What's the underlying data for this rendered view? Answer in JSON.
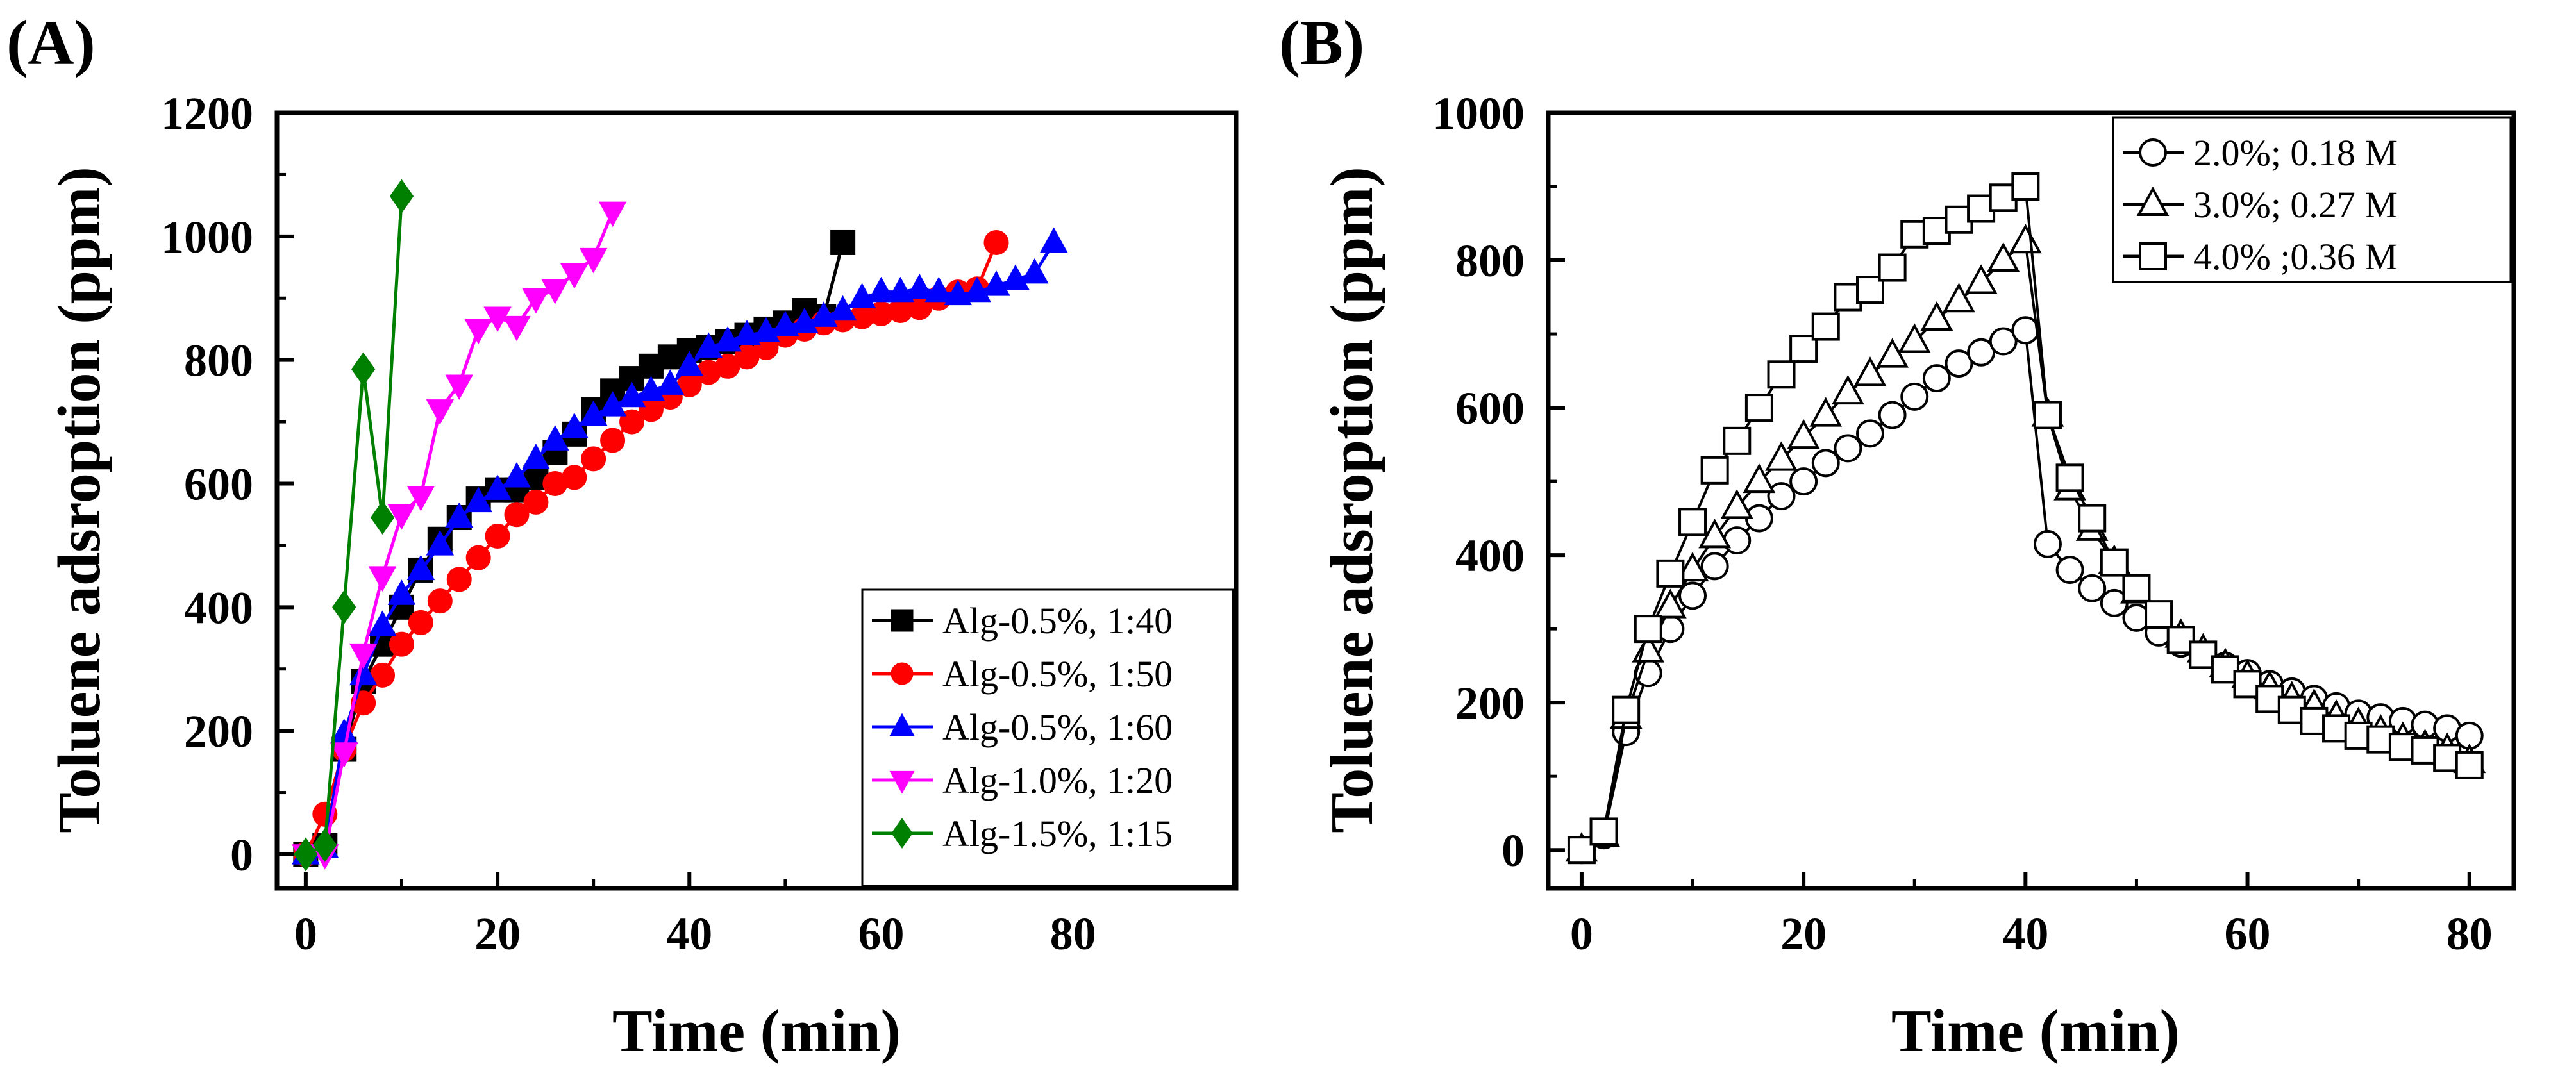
{
  "chart_data": [
    {
      "panel_label": "(A)",
      "type": "line",
      "xlabel": "Time (min)",
      "ylabel": "Toluene adsroption (ppm)",
      "xlim": [
        -3,
        97
      ],
      "ylim": [
        -55,
        1200
      ],
      "xticks": [
        "0",
        "20",
        "40",
        "60",
        "80"
      ],
      "yticks": [
        "0",
        "200",
        "400",
        "600",
        "800",
        "1000",
        "1200"
      ],
      "grid": false,
      "legend": "bottom-right",
      "series": [
        {
          "name": "Alg-0.5%, 1:40",
          "color": "#000000",
          "marker": "square",
          "filled": true,
          "x": [
            0,
            2,
            4,
            6,
            8,
            10,
            12,
            14,
            16,
            18,
            20,
            22,
            24,
            26,
            28,
            30,
            32,
            34,
            36,
            38,
            40,
            42,
            44,
            46,
            48,
            50,
            52,
            54,
            56
          ],
          "y": [
            0,
            15,
            170,
            280,
            340,
            400,
            460,
            510,
            545,
            575,
            590,
            590,
            610,
            650,
            680,
            720,
            750,
            770,
            790,
            805,
            815,
            820,
            830,
            840,
            850,
            860,
            880,
            870,
            990
          ]
        },
        {
          "name": "Alg-0.5%, 1:50",
          "color": "#ff0000",
          "marker": "circle",
          "filled": true,
          "x": [
            0,
            2,
            4,
            6,
            8,
            10,
            12,
            14,
            16,
            18,
            20,
            22,
            24,
            26,
            28,
            30,
            32,
            34,
            36,
            38,
            40,
            42,
            44,
            46,
            48,
            50,
            52,
            54,
            56,
            58,
            60,
            62,
            64,
            66,
            68,
            70,
            72
          ],
          "y": [
            0,
            65,
            170,
            245,
            290,
            340,
            375,
            410,
            445,
            480,
            515,
            550,
            570,
            600,
            610,
            640,
            670,
            700,
            720,
            740,
            760,
            780,
            790,
            805,
            820,
            840,
            850,
            860,
            865,
            870,
            875,
            880,
            885,
            900,
            910,
            915,
            990
          ]
        },
        {
          "name": "Alg-0.5%, 1:60",
          "color": "#0000ff",
          "marker": "triangle-up",
          "filled": true,
          "x": [
            0,
            2,
            4,
            6,
            8,
            10,
            12,
            14,
            16,
            18,
            20,
            22,
            24,
            26,
            28,
            30,
            32,
            34,
            36,
            38,
            40,
            42,
            44,
            46,
            48,
            50,
            52,
            54,
            56,
            58,
            60,
            62,
            64,
            66,
            68,
            70,
            72,
            74,
            76,
            78
          ],
          "y": [
            0,
            10,
            195,
            290,
            370,
            420,
            460,
            500,
            545,
            570,
            590,
            610,
            640,
            670,
            690,
            710,
            725,
            740,
            750,
            760,
            790,
            820,
            830,
            840,
            845,
            855,
            860,
            870,
            880,
            900,
            910,
            910,
            915,
            910,
            905,
            910,
            920,
            930,
            940,
            990
          ]
        },
        {
          "name": "Alg-1.0%, 1:20",
          "color": "#ff00ff",
          "marker": "triangle-down",
          "filled": true,
          "x": [
            0,
            2,
            4,
            6,
            8,
            10,
            12,
            14,
            16,
            18,
            20,
            22,
            24,
            26,
            28,
            30,
            32
          ],
          "y": [
            0,
            0,
            165,
            325,
            450,
            550,
            580,
            720,
            760,
            850,
            870,
            855,
            900,
            915,
            940,
            965,
            1040
          ]
        },
        {
          "name": "Alg-1.5%, 1:15",
          "color": "#008000",
          "marker": "diamond",
          "filled": true,
          "x": [
            0,
            2,
            4,
            6,
            8,
            10
          ],
          "y": [
            0,
            15,
            400,
            785,
            545,
            1065
          ]
        }
      ]
    },
    {
      "panel_label": "(B)",
      "type": "line",
      "xlabel": "Time (min)",
      "ylabel": "Toluene adsroption (ppm)",
      "xlim": [
        -3,
        84
      ],
      "ylim": [
        -52,
        1000
      ],
      "xticks": [
        "0",
        "20",
        "40",
        "60",
        "80"
      ],
      "yticks": [
        "0",
        "200",
        "400",
        "600",
        "800",
        "1000"
      ],
      "grid": false,
      "legend": "top-right",
      "series": [
        {
          "name": "2.0%; 0.18 M",
          "color": "#000000",
          "marker": "circle",
          "filled": false,
          "x": [
            0,
            2,
            4,
            6,
            8,
            10,
            12,
            14,
            16,
            18,
            20,
            22,
            24,
            26,
            28,
            30,
            32,
            34,
            36,
            38,
            40,
            42,
            44,
            46,
            48,
            50,
            52,
            54,
            56,
            58,
            60,
            62,
            64,
            66,
            68,
            70,
            72,
            74,
            76,
            78,
            80
          ],
          "y": [
            0,
            20,
            160,
            240,
            300,
            345,
            385,
            420,
            450,
            480,
            500,
            525,
            545,
            565,
            590,
            615,
            640,
            660,
            675,
            690,
            705,
            415,
            380,
            355,
            335,
            315,
            295,
            280,
            265,
            250,
            240,
            225,
            215,
            205,
            195,
            185,
            180,
            175,
            170,
            165,
            155
          ]
        },
        {
          "name": "3.0%; 0.27 M",
          "color": "#000000",
          "marker": "triangle-up",
          "filled": false,
          "x": [
            0,
            2,
            4,
            6,
            8,
            10,
            12,
            14,
            16,
            18,
            20,
            22,
            24,
            26,
            28,
            30,
            32,
            34,
            36,
            38,
            40,
            42,
            44,
            46,
            48,
            50,
            52,
            54,
            56,
            58,
            60,
            62,
            64,
            66,
            68,
            70,
            72,
            74,
            76,
            78,
            80
          ],
          "y": [
            0,
            20,
            180,
            270,
            330,
            380,
            425,
            465,
            500,
            530,
            560,
            590,
            620,
            645,
            670,
            690,
            720,
            745,
            770,
            800,
            825,
            590,
            490,
            435,
            390,
            350,
            315,
            290,
            270,
            250,
            235,
            220,
            205,
            195,
            180,
            170,
            160,
            150,
            140,
            135,
            120
          ]
        },
        {
          "name": "4.0% ;0.36 M",
          "color": "#000000",
          "marker": "square",
          "filled": false,
          "x": [
            0,
            2,
            4,
            6,
            8,
            10,
            12,
            14,
            16,
            18,
            20,
            22,
            24,
            26,
            28,
            30,
            32,
            34,
            36,
            38,
            40,
            42,
            44,
            46,
            48,
            50,
            52,
            54,
            56,
            58,
            60,
            62,
            64,
            66,
            68,
            70,
            72,
            74,
            76,
            78,
            80
          ],
          "y": [
            0,
            25,
            190,
            300,
            375,
            445,
            515,
            555,
            600,
            645,
            680,
            710,
            750,
            760,
            790,
            835,
            840,
            855,
            870,
            885,
            900,
            590,
            505,
            450,
            390,
            355,
            320,
            285,
            265,
            245,
            225,
            205,
            190,
            175,
            165,
            155,
            150,
            140,
            135,
            125,
            115
          ]
        }
      ]
    }
  ]
}
